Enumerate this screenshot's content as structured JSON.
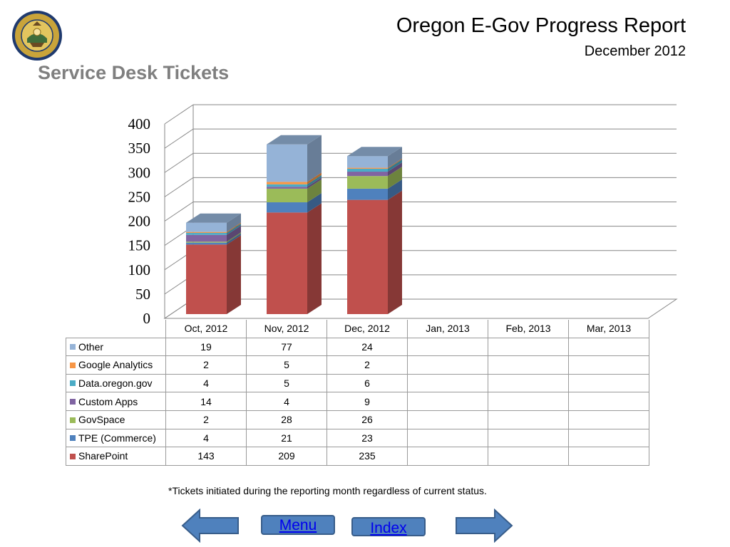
{
  "header": {
    "title": "Oregon E-Gov Progress Report",
    "date": "December 2012",
    "section_title": "Service Desk Tickets",
    "seal_text": "STATE OF OREGON 1859"
  },
  "chart_data": {
    "type": "bar",
    "stacked": true,
    "three_d": true,
    "categories": [
      "Oct, 2012",
      "Nov, 2012",
      "Dec, 2012",
      "Jan, 2013",
      "Feb, 2013",
      "Mar, 2013"
    ],
    "series": [
      {
        "name": "SharePoint",
        "color": "#c0504d",
        "values": [
          143,
          209,
          235,
          null,
          null,
          null
        ]
      },
      {
        "name": "TPE (Commerce)",
        "color": "#4f81bd",
        "values": [
          4,
          21,
          23,
          null,
          null,
          null
        ]
      },
      {
        "name": "GovSpace",
        "color": "#9bbb59",
        "values": [
          2,
          28,
          26,
          null,
          null,
          null
        ]
      },
      {
        "name": "Custom Apps",
        "color": "#8064a2",
        "values": [
          14,
          4,
          9,
          null,
          null,
          null
        ]
      },
      {
        "name": "Data.oregon.gov",
        "color": "#4bacc6",
        "values": [
          4,
          5,
          6,
          null,
          null,
          null
        ]
      },
      {
        "name": "Google Analytics",
        "color": "#f79646",
        "values": [
          2,
          5,
          2,
          null,
          null,
          null
        ]
      },
      {
        "name": "Other",
        "color": "#95b3d7",
        "values": [
          19,
          77,
          24,
          null,
          null,
          null
        ]
      }
    ],
    "table_row_order": [
      "Other",
      "Google Analytics",
      "Data.oregon.gov",
      "Custom Apps",
      "GovSpace",
      "TPE (Commerce)",
      "SharePoint"
    ],
    "ylim": [
      0,
      400
    ],
    "yticks": [
      "0",
      "50",
      "100",
      "150",
      "200",
      "250",
      "300",
      "350",
      "400"
    ],
    "grid": true,
    "legend": "data-table"
  },
  "footnote": "*Tickets initiated  during the reporting month regardless of current status.",
  "nav": {
    "menu_label": "Menu",
    "index_label": "Index"
  }
}
